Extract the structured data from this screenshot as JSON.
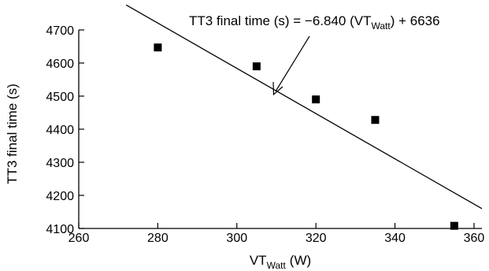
{
  "chart_data": {
    "type": "scatter",
    "title": "",
    "ylabel": "TT3 final time (s)",
    "xlabel": {
      "base": "VT",
      "sub": "Watt",
      "unit": "(W)"
    },
    "xlim": [
      260,
      362
    ],
    "ylim": [
      4100,
      4700
    ],
    "xticks": [
      260,
      280,
      300,
      320,
      340,
      360
    ],
    "yticks": [
      4100,
      4200,
      4300,
      4400,
      4500,
      4600,
      4700
    ],
    "grid": false,
    "points": [
      {
        "x": 280,
        "y": 4647
      },
      {
        "x": 305,
        "y": 4590
      },
      {
        "x": 320,
        "y": 4490
      },
      {
        "x": 335,
        "y": 4428
      },
      {
        "x": 355,
        "y": 4108
      }
    ],
    "fit_line": {
      "slope": -6.84,
      "intercept": 6636,
      "x_start": 272,
      "x_end": 362
    },
    "annotation": {
      "prefix": "TT3 final time (s) = −6.840 (VT",
      "sub": "Watt",
      "suffix": ") + 6636"
    }
  }
}
